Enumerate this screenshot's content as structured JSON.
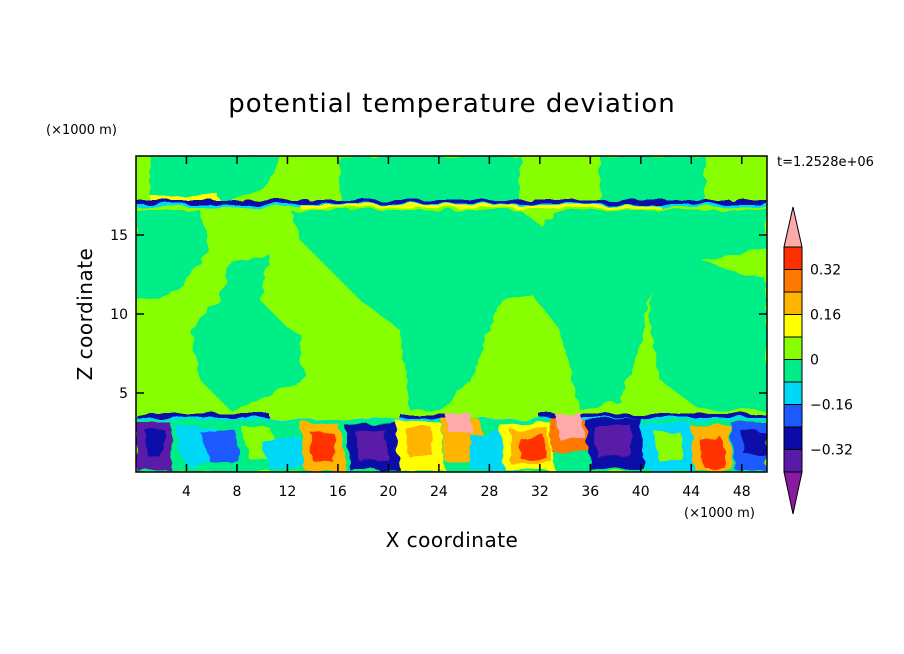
{
  "chart_data": {
    "type": "heatmap",
    "title": "potential temperature deviation",
    "xlabel": "X coordinate",
    "ylabel": "Z coordinate",
    "x_units": "(×1000 m)",
    "y_units": "(×1000 m)",
    "time_label": "t=1.2528e+06",
    "xlim": [
      0,
      50
    ],
    "ylim": [
      0,
      20
    ],
    "x_ticks": [
      4,
      8,
      12,
      16,
      20,
      24,
      28,
      32,
      36,
      40,
      44,
      48
    ],
    "y_ticks": [
      5,
      10,
      15
    ],
    "colorbar": {
      "levels": [
        -0.48,
        -0.4,
        -0.32,
        -0.24,
        -0.16,
        -0.08,
        0,
        0.08,
        0.16,
        0.24,
        0.32,
        0.4,
        0.48
      ],
      "labels": [
        {
          "value": 0.32,
          "text": "0.32"
        },
        {
          "value": 0.16,
          "text": "0.16"
        },
        {
          "value": 0,
          "text": "0"
        },
        {
          "value": -0.16,
          "text": "−0.16"
        },
        {
          "value": -0.32,
          "text": "−0.32"
        }
      ],
      "colors": [
        "#8a1aa0",
        "#5a1aa8",
        "#0a0aa8",
        "#1a5aff",
        "#00d8f8",
        "#00ee88",
        "#88ff00",
        "#ffff00",
        "#ffb400",
        "#ff7800",
        "#ff3000",
        "#ffaaaa"
      ]
    },
    "grid": false
  }
}
